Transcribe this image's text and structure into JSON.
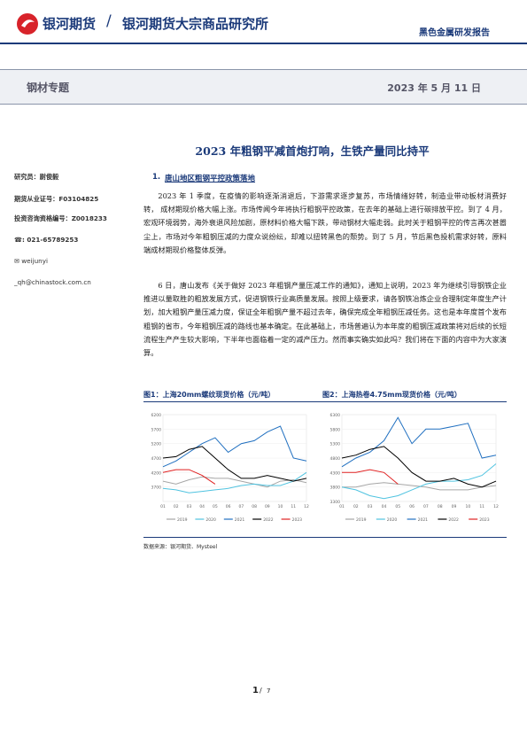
{
  "header": {
    "brand": "银河期货",
    "slash": "/",
    "institute": "银河期货大宗商品研究所",
    "report_type": "黑色金属研发报告"
  },
  "band": {
    "topic": "钢材专题",
    "date": "2023 年 5 月 11 日"
  },
  "sidebar": [
    "研究员：尉俊毅",
    "期货从业证号：F03104825",
    "投资咨询资格编号：Z0018233",
    "☎: 021-65789253",
    "✉ weijunyi",
    "_qh@chinastock.com.cn"
  ],
  "title": "2023 年粗钢平减首炮打响，生铁产量同比持平",
  "section": {
    "number": "1.",
    "heading": "唐山地区粗钢平控政策落地"
  },
  "paragraphs": [
    "2023 年 1 季度，在疫情的影响逐渐消退后，下游需求逐步复苏，市场情绪好转，制造业带动板材消费好转， 成材期现价格大幅上涨。市场传闻今年将执行粗钢平控政策，在去年的基础上进行碳排放平控。到了 4 月，宏观环境弱势，海外衰退风险加剧，原材料价格大幅下跌，带动钢材大幅走弱。此时关于粗钢平控的传言再次甚嚣尘上，市场对今年粗钢压减的力度众说纷纭，却难以扭转黑色的颓势。到了 5 月，节后黑色投机需求好转，原料端成材期现价格整体反弹。",
    "6 日，唐山发布《关于做好 2023 年粗钢产量压减工作的通知》，通知上说明，2023 年为继续引导钢铁企业推进以量取胜的粗放发展方式，促进钢铁行业高质量发展。按照上级要求，请各钢铁冶炼企业合理制定年度生产计划，加大粗钢产量压减力度，保证全年粗钢产量不超过去年，确保完成全年粗钢压减任务。这也是本年度首个发布粗钢的省市，今年粗钢压减的路线也基本确定。在此基础上，市场普遍认为本年度的粗钢压减政策将对后续的长短流程生产产生较大影响，下半年也面临着一定的减产压力。然而事实确实如此吗？我们将在下面的内容中为大家演算。"
  ],
  "figures": [
    {
      "caption": "图1：上海20mm螺纹现货价格（元/吨）",
      "chart_data": {
        "type": "line",
        "categories": [
          "01",
          "02",
          "03",
          "04",
          "05",
          "06",
          "07",
          "08",
          "09",
          "10",
          "11",
          "12"
        ],
        "ylim": [
          3200,
          6200
        ],
        "yticks": [
          3700,
          4200,
          4700,
          5200,
          5700,
          6200
        ],
        "series": [
          {
            "name": "2019",
            "color": "#a6a6a6",
            "values": [
              3900,
              3800,
              3950,
              4050,
              4000,
              4000,
              3900,
              3800,
              3700,
              3900,
              3950,
              3850
            ]
          },
          {
            "name": "2020",
            "color": "#4fc3e0",
            "values": [
              3650,
              3600,
              3500,
              3550,
              3600,
              3650,
              3750,
              3800,
              3750,
              3750,
              3900,
              4200
            ]
          },
          {
            "name": "2021",
            "color": "#1f6fc0",
            "values": [
              4400,
              4600,
              4900,
              5200,
              5400,
              4900,
              5200,
              5300,
              5600,
              5800,
              4700,
              4600
            ]
          },
          {
            "name": "2022",
            "color": "#000000",
            "values": [
              4700,
              4750,
              5000,
              5100,
              4700,
              4300,
              4000,
              4000,
              4100,
              4000,
              3900,
              4000
            ]
          },
          {
            "name": "2023",
            "color": "#e02020",
            "values": [
              4200,
              4300,
              4300,
              4100,
              3800,
              null,
              null,
              null,
              null,
              null,
              null,
              null
            ]
          }
        ]
      }
    },
    {
      "caption": "图2：上海热卷4.75mm现货价格（元/吨）",
      "chart_data": {
        "type": "line",
        "categories": [
          "01",
          "02",
          "03",
          "04",
          "05",
          "06",
          "07",
          "08",
          "09",
          "10",
          "11",
          "12"
        ],
        "ylim": [
          3300,
          6300
        ],
        "yticks": [
          3300,
          3800,
          4300,
          4800,
          5300,
          5800,
          6300
        ],
        "series": [
          {
            "name": "2019",
            "color": "#a6a6a6",
            "values": [
              3800,
              3800,
              3900,
              3950,
              3900,
              3850,
              3800,
              3700,
              3700,
              3700,
              3800,
              3850
            ]
          },
          {
            "name": "2020",
            "color": "#4fc3e0",
            "values": [
              3800,
              3700,
              3500,
              3400,
              3500,
              3700,
              3900,
              4000,
              4000,
              4050,
              4200,
              4600
            ]
          },
          {
            "name": "2021",
            "color": "#1f6fc0",
            "values": [
              4500,
              4800,
              5000,
              5400,
              6200,
              5300,
              5800,
              5800,
              5900,
              6000,
              4800,
              4900
            ]
          },
          {
            "name": "2022",
            "color": "#000000",
            "values": [
              4800,
              4900,
              5100,
              5200,
              4800,
              4300,
              4000,
              4000,
              4100,
              3900,
              3800,
              4000
            ]
          },
          {
            "name": "2023",
            "color": "#e02020",
            "values": [
              4300,
              4300,
              4400,
              4300,
              3900,
              null,
              null,
              null,
              null,
              null,
              null,
              null
            ]
          }
        ]
      }
    }
  ],
  "source": "数据来源：银河期货、Mysteel",
  "page": {
    "current": "1",
    "total": "7"
  }
}
